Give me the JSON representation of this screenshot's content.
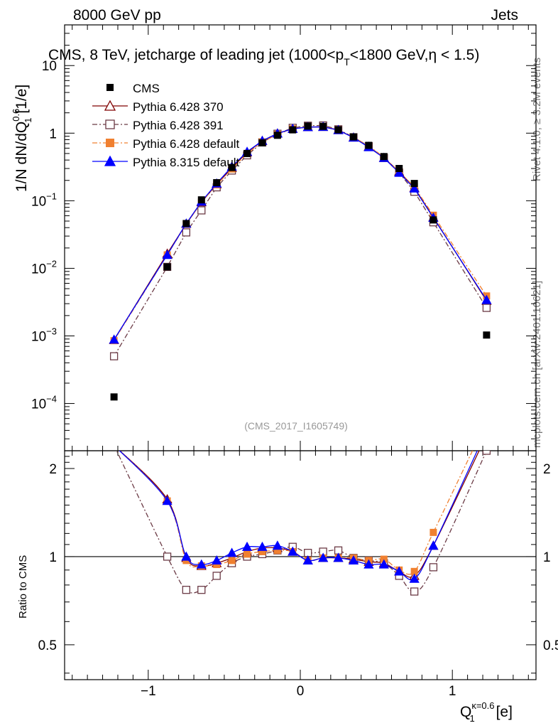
{
  "header": {
    "left": "8000 GeV pp",
    "right": "Jets"
  },
  "side_labels": {
    "rivet": "Rivet 4.1.0, ≥ 3.2M events",
    "mcplots": "mcplots.cern.ch [arXiv:2401.10621]"
  },
  "chart_data": {
    "type": "scatter",
    "title_parts": {
      "a": "CMS, 8 TeV, jetcharge of leading jet (1000<p",
      "b": "T",
      "c": "<1800 GeV,η < 1.5)"
    },
    "analysis_id": "(CMS_2017_I1605749)",
    "ylabel": {
      "main": "1/N dN/dQ",
      "sup": "0.6",
      "sub": "1",
      "unit": " [1/e]"
    },
    "xlabel": {
      "main": "Q",
      "sup": "κ=0.6",
      "sub": "1",
      "unit": " [e]"
    },
    "ratio_ylabel": "Ratio to CMS",
    "xlim": [
      -1.55,
      1.55
    ],
    "ylim": [
      2e-05,
      40
    ],
    "ratio_ylim": [
      0.38,
      2.3
    ],
    "x_ticks": [
      {
        "v": -1,
        "label": "−1"
      },
      {
        "v": 0,
        "label": "0"
      },
      {
        "v": 1,
        "label": "1"
      }
    ],
    "y_ticks": [
      {
        "v": 10,
        "kind": "plain",
        "label": "10"
      },
      {
        "v": 1,
        "kind": "plain",
        "label": "1"
      },
      {
        "v": 0.1,
        "kind": "pow",
        "base": "10",
        "exp": "−1"
      },
      {
        "v": 0.01,
        "kind": "pow",
        "base": "10",
        "exp": "−2"
      },
      {
        "v": 0.001,
        "kind": "pow",
        "base": "10",
        "exp": "−3"
      },
      {
        "v": 0.0001,
        "kind": "pow",
        "base": "10",
        "exp": "−4"
      }
    ],
    "ratio_ticks": [
      {
        "v": 2,
        "label": "2"
      },
      {
        "v": 1,
        "label": "1"
      },
      {
        "v": 0.5,
        "label": "0.5"
      }
    ],
    "x": [
      -1.225,
      -0.875,
      -0.75,
      -0.65,
      -0.55,
      -0.45,
      -0.35,
      -0.25,
      -0.15,
      -0.05,
      0.05,
      0.15,
      0.25,
      0.35,
      0.45,
      0.55,
      0.65,
      0.75,
      0.875,
      1.225
    ],
    "cms": [
      0.000125,
      0.0105,
      0.046,
      0.103,
      0.185,
      0.31,
      0.5,
      0.72,
      0.93,
      1.12,
      1.27,
      1.26,
      1.12,
      0.88,
      0.66,
      0.45,
      0.3,
      0.18,
      0.052,
      0.00103
    ],
    "series": [
      {
        "name": "Pythia 6.428 370",
        "color": "#800000",
        "marker": "triangle-open",
        "dash": "",
        "values": [
          0.00087,
          0.0165,
          0.0455,
          0.095,
          0.175,
          0.305,
          0.52,
          0.77,
          0.99,
          1.16,
          1.23,
          1.24,
          1.11,
          0.86,
          0.63,
          0.43,
          0.27,
          0.155,
          0.057,
          0.0033
        ],
        "ratio": [
          2.4,
          1.57,
          0.99,
          0.93,
          0.95,
          0.99,
          1.04,
          1.07,
          1.07,
          1.04,
          0.97,
          0.99,
          0.99,
          0.98,
          0.96,
          0.95,
          0.89,
          0.86,
          1.09,
          2.6
        ]
      },
      {
        "name": "Pythia 6.428 391",
        "color": "#6b3a45",
        "marker": "square-open",
        "dash": "7,3,2,3",
        "values": [
          0.0005,
          0.0105,
          0.034,
          0.072,
          0.158,
          0.28,
          0.47,
          0.73,
          0.98,
          1.2,
          1.29,
          1.3,
          1.14,
          0.87,
          0.64,
          0.43,
          0.26,
          0.136,
          0.048,
          0.0026
        ],
        "ratio": [
          2.4,
          1.0,
          0.77,
          0.77,
          0.86,
          0.95,
          1.0,
          1.02,
          1.05,
          1.08,
          1.03,
          1.04,
          1.05,
          0.99,
          0.97,
          0.95,
          0.86,
          0.76,
          0.92,
          2.3
        ]
      },
      {
        "name": "Pythia 6.428 default",
        "color": "#f08030",
        "marker": "square-filled",
        "dash": "7,3,2,3",
        "values": [
          0.00085,
          0.0158,
          0.045,
          0.095,
          0.172,
          0.295,
          0.5,
          0.74,
          0.96,
          1.16,
          1.23,
          1.25,
          1.12,
          0.87,
          0.65,
          0.44,
          0.27,
          0.16,
          0.061,
          0.0039
        ],
        "ratio": [
          2.4,
          1.55,
          0.97,
          0.93,
          0.94,
          0.97,
          1.02,
          1.04,
          1.05,
          1.04,
          0.97,
          0.99,
          0.99,
          0.99,
          0.97,
          0.98,
          0.9,
          0.89,
          1.21,
          2.9
        ]
      },
      {
        "name": "Pythia 8.315 default",
        "color": "#0000ff",
        "marker": "triangle-filled",
        "dash": "",
        "values": [
          0.00088,
          0.0158,
          0.046,
          0.097,
          0.18,
          0.32,
          0.53,
          0.77,
          0.99,
          1.16,
          1.23,
          1.24,
          1.11,
          0.86,
          0.62,
          0.43,
          0.26,
          0.152,
          0.056,
          0.0034
        ],
        "ratio": [
          2.4,
          1.55,
          1.0,
          0.94,
          0.97,
          1.03,
          1.08,
          1.08,
          1.09,
          1.04,
          0.97,
          0.99,
          0.99,
          0.97,
          0.94,
          0.94,
          0.89,
          0.84,
          1.09,
          2.7
        ]
      }
    ],
    "legend": {
      "placement": "top-left",
      "data_label": "CMS"
    }
  }
}
